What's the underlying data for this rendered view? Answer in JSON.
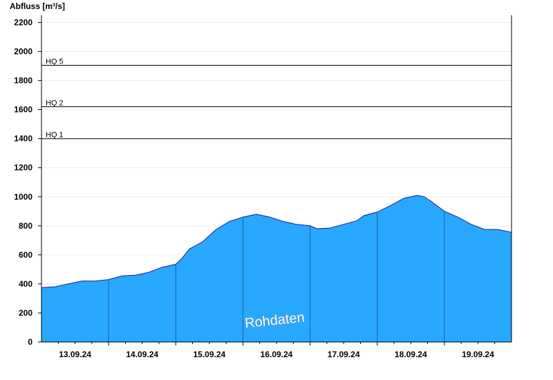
{
  "chart_data": {
    "type": "area",
    "ylabel": "Abfluss [m³/s]",
    "ylim": [
      0,
      2250
    ],
    "y_ticks": [
      0,
      200,
      400,
      600,
      800,
      1000,
      1200,
      1400,
      1600,
      1800,
      2000,
      2200
    ],
    "x_range_days": [
      0,
      7
    ],
    "day_labels": [
      "13.09.24",
      "14.09.24",
      "15.09.24",
      "16.09.24",
      "17.09.24",
      "18.09.24",
      "19.09.24"
    ],
    "reference_lines": [
      {
        "name": "HQ 1",
        "value": 1400
      },
      {
        "name": "HQ 2",
        "value": 1620
      },
      {
        "name": "HQ 5",
        "value": 1905
      }
    ],
    "series": [
      {
        "name": "Abfluss",
        "color": "#29a8ff",
        "edge_color": "#1a1aa0",
        "x": [
          0,
          0.2,
          0.4,
          0.6,
          0.8,
          1.0,
          1.2,
          1.4,
          1.6,
          1.8,
          2.0,
          2.1,
          2.2,
          2.4,
          2.6,
          2.8,
          3.0,
          3.1,
          3.2,
          3.3,
          3.4,
          3.6,
          3.8,
          4.0,
          4.1,
          4.3,
          4.5,
          4.7,
          4.8,
          5.0,
          5.2,
          5.4,
          5.5,
          5.6,
          5.7,
          5.8,
          6.0,
          6.2,
          6.4,
          6.6,
          6.8,
          7.0
        ],
        "y": [
          375,
          380,
          400,
          420,
          420,
          430,
          455,
          460,
          480,
          515,
          535,
          580,
          640,
          690,
          775,
          830,
          860,
          870,
          880,
          870,
          860,
          830,
          810,
          800,
          780,
          785,
          810,
          835,
          870,
          895,
          940,
          990,
          1000,
          1010,
          1000,
          970,
          900,
          860,
          810,
          775,
          775,
          755
        ]
      }
    ],
    "annotation": "Rohdaten"
  }
}
